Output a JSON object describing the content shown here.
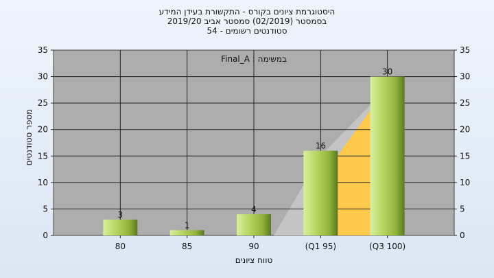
{
  "chart_data": {
    "type": "bar",
    "title": [
      "היסטוגרמת ציונים בקורס - התקשורת בעידן המידע",
      "בסמסטר  (02/2019)  סמסטר אביב 2019/20",
      "סטודנטים רשומים - 54"
    ],
    "annotation": "במשימה : Final_A",
    "categories": [
      "80",
      "85",
      "90",
      "(Q1 95)",
      "(Q3 100)"
    ],
    "values": [
      3,
      1,
      4,
      16,
      30
    ],
    "data_labels": [
      "3",
      "1",
      "4",
      "16",
      "30"
    ],
    "xlabel": "טווח ציונים",
    "ylabel": "מספר סטודנטים",
    "ylim": [
      0,
      35
    ],
    "yticks": [
      0,
      5,
      10,
      15,
      20,
      25,
      30,
      35
    ],
    "y_axis_sides": [
      "left",
      "right"
    ],
    "grid": true,
    "colors": {
      "bar_light": "#d8eea0",
      "bar_mid": "#9cc23e",
      "bar_dark": "#5a7a1e",
      "plot_bg": "#adadad",
      "iqr_area": "#ffc94d",
      "shadow_area": "#c4c4c4"
    }
  }
}
